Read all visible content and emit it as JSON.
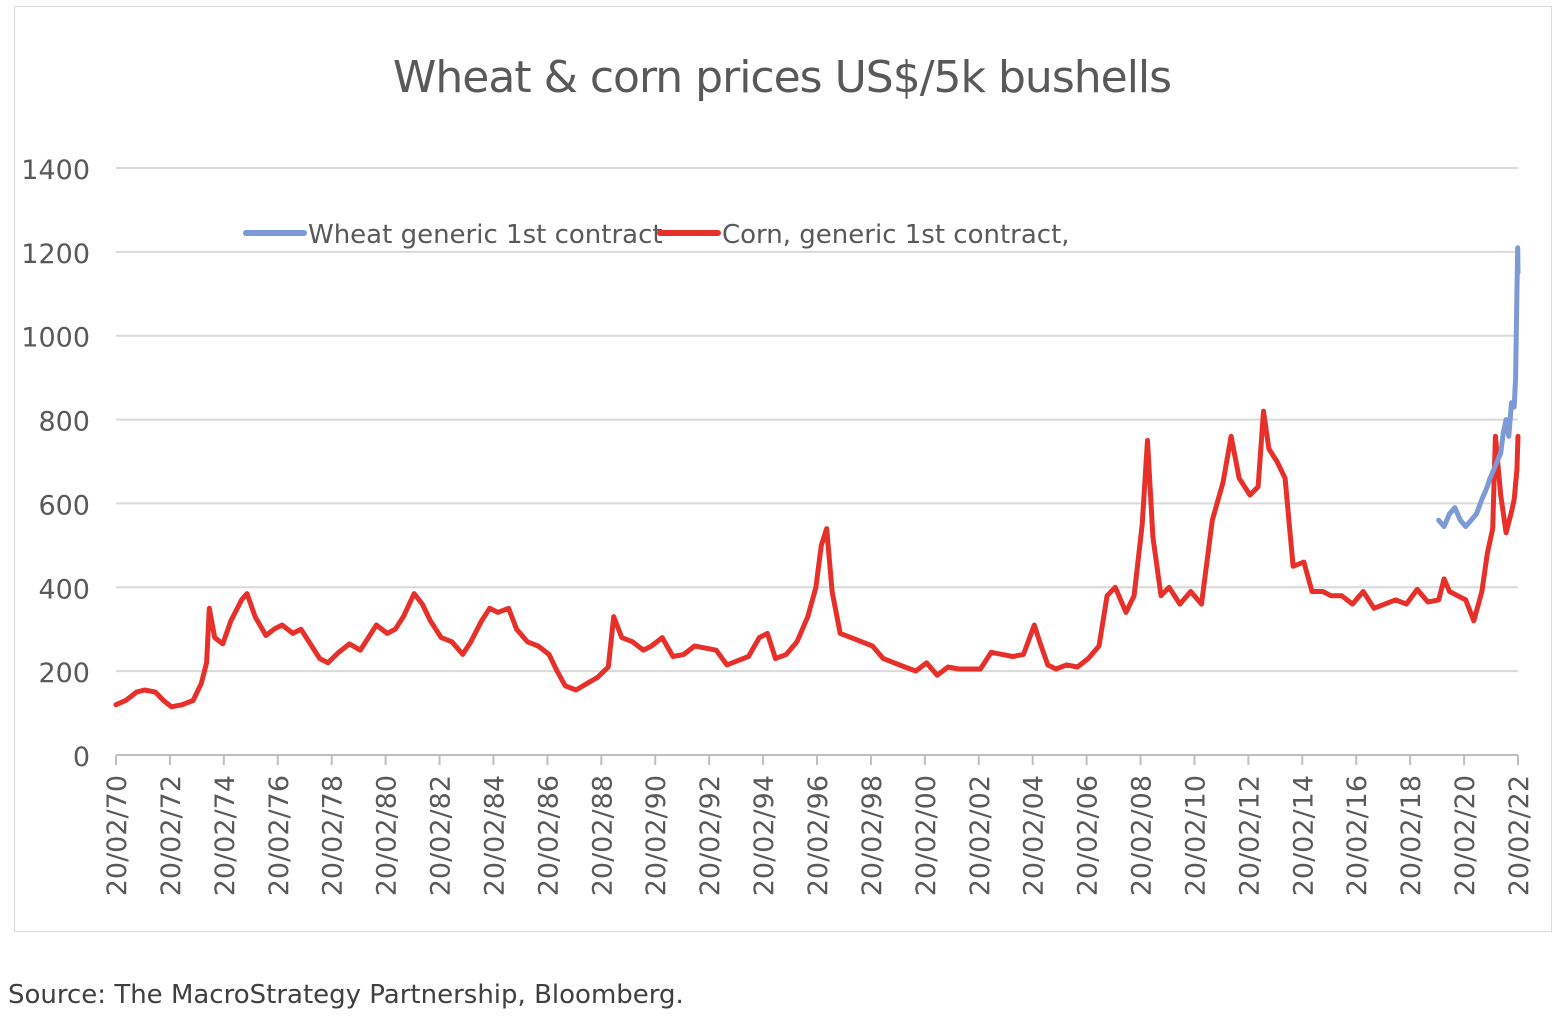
{
  "chart_data": {
    "type": "line",
    "title": "Wheat & corn prices US$/5k bushells",
    "xlabel": "",
    "ylabel": "",
    "ylim": [
      0,
      1400
    ],
    "yticks": [
      0,
      200,
      400,
      600,
      800,
      1000,
      1200,
      1400
    ],
    "xticks": [
      "20/02/70",
      "20/02/72",
      "20/02/74",
      "20/02/76",
      "20/02/78",
      "20/02/80",
      "20/02/82",
      "20/02/84",
      "20/02/86",
      "20/02/88",
      "20/02/90",
      "20/02/92",
      "20/02/94",
      "20/02/96",
      "20/02/98",
      "20/02/00",
      "20/02/02",
      "20/02/04",
      "20/02/06",
      "20/02/08",
      "20/02/10",
      "20/02/12",
      "20/02/14",
      "20/02/16",
      "20/02/18",
      "20/02/20",
      "20/02/22"
    ],
    "xlim": [
      1970.14,
      2022.14
    ],
    "grid": true,
    "legend_position": "top",
    "series": [
      {
        "name": "Wheat generic 1st contract",
        "color": "#7b9ad6",
        "points": [
          [
            2019.2,
            560
          ],
          [
            2019.4,
            545
          ],
          [
            2019.6,
            575
          ],
          [
            2019.8,
            590
          ],
          [
            2020.0,
            560
          ],
          [
            2020.2,
            545
          ],
          [
            2020.4,
            560
          ],
          [
            2020.6,
            575
          ],
          [
            2020.8,
            610
          ],
          [
            2021.0,
            640
          ],
          [
            2021.1,
            660
          ],
          [
            2021.3,
            690
          ],
          [
            2021.5,
            720
          ],
          [
            2021.6,
            770
          ],
          [
            2021.7,
            800
          ],
          [
            2021.8,
            760
          ],
          [
            2021.9,
            840
          ],
          [
            2022.0,
            830
          ],
          [
            2022.05,
            900
          ],
          [
            2022.1,
            1100
          ],
          [
            2022.13,
            1210
          ],
          [
            2022.14,
            1150
          ]
        ]
      },
      {
        "name": "Corn, generic 1st contract,",
        "color": "#e8302a",
        "points": [
          [
            1970.14,
            120
          ],
          [
            1970.5,
            130
          ],
          [
            1970.9,
            150
          ],
          [
            1971.2,
            155
          ],
          [
            1971.6,
            150
          ],
          [
            1971.9,
            130
          ],
          [
            1972.2,
            115
          ],
          [
            1972.6,
            120
          ],
          [
            1973.0,
            130
          ],
          [
            1973.3,
            170
          ],
          [
            1973.5,
            220
          ],
          [
            1973.6,
            350
          ],
          [
            1973.8,
            280
          ],
          [
            1974.1,
            265
          ],
          [
            1974.4,
            320
          ],
          [
            1974.8,
            370
          ],
          [
            1975.0,
            385
          ],
          [
            1975.3,
            330
          ],
          [
            1975.7,
            285
          ],
          [
            1976.0,
            300
          ],
          [
            1976.3,
            310
          ],
          [
            1976.7,
            290
          ],
          [
            1977.0,
            300
          ],
          [
            1977.3,
            270
          ],
          [
            1977.7,
            230
          ],
          [
            1978.0,
            220
          ],
          [
            1978.4,
            245
          ],
          [
            1978.8,
            265
          ],
          [
            1979.2,
            250
          ],
          [
            1979.5,
            280
          ],
          [
            1979.8,
            310
          ],
          [
            1980.2,
            290
          ],
          [
            1980.5,
            300
          ],
          [
            1980.8,
            330
          ],
          [
            1981.2,
            385
          ],
          [
            1981.5,
            360
          ],
          [
            1981.8,
            320
          ],
          [
            1982.2,
            280
          ],
          [
            1982.6,
            270
          ],
          [
            1983.0,
            240
          ],
          [
            1983.3,
            270
          ],
          [
            1983.7,
            320
          ],
          [
            1984.0,
            350
          ],
          [
            1984.3,
            340
          ],
          [
            1984.7,
            350
          ],
          [
            1985.0,
            300
          ],
          [
            1985.4,
            270
          ],
          [
            1985.8,
            260
          ],
          [
            1986.2,
            240
          ],
          [
            1986.5,
            200
          ],
          [
            1986.8,
            165
          ],
          [
            1987.2,
            155
          ],
          [
            1987.6,
            170
          ],
          [
            1988.0,
            185
          ],
          [
            1988.4,
            210
          ],
          [
            1988.6,
            330
          ],
          [
            1988.9,
            280
          ],
          [
            1989.3,
            270
          ],
          [
            1989.7,
            250
          ],
          [
            1990.0,
            260
          ],
          [
            1990.4,
            280
          ],
          [
            1990.8,
            235
          ],
          [
            1991.2,
            240
          ],
          [
            1991.6,
            260
          ],
          [
            1992.0,
            255
          ],
          [
            1992.4,
            250
          ],
          [
            1992.8,
            215
          ],
          [
            1993.2,
            225
          ],
          [
            1993.6,
            235
          ],
          [
            1994.0,
            280
          ],
          [
            1994.3,
            290
          ],
          [
            1994.6,
            230
          ],
          [
            1995.0,
            240
          ],
          [
            1995.4,
            270
          ],
          [
            1995.8,
            330
          ],
          [
            1996.1,
            400
          ],
          [
            1996.3,
            500
          ],
          [
            1996.5,
            540
          ],
          [
            1996.7,
            390
          ],
          [
            1997.0,
            290
          ],
          [
            1997.4,
            280
          ],
          [
            1997.8,
            270
          ],
          [
            1998.2,
            260
          ],
          [
            1998.6,
            230
          ],
          [
            1999.0,
            220
          ],
          [
            1999.4,
            210
          ],
          [
            1999.8,
            200
          ],
          [
            2000.2,
            220
          ],
          [
            2000.6,
            190
          ],
          [
            2001.0,
            210
          ],
          [
            2001.4,
            205
          ],
          [
            2001.8,
            205
          ],
          [
            2002.2,
            205
          ],
          [
            2002.6,
            245
          ],
          [
            2003.0,
            240
          ],
          [
            2003.4,
            235
          ],
          [
            2003.8,
            240
          ],
          [
            2004.2,
            310
          ],
          [
            2004.4,
            270
          ],
          [
            2004.7,
            215
          ],
          [
            2005.0,
            205
          ],
          [
            2005.4,
            215
          ],
          [
            2005.8,
            210
          ],
          [
            2006.2,
            230
          ],
          [
            2006.6,
            260
          ],
          [
            2006.9,
            380
          ],
          [
            2007.2,
            400
          ],
          [
            2007.6,
            340
          ],
          [
            2007.9,
            380
          ],
          [
            2008.2,
            550
          ],
          [
            2008.4,
            750
          ],
          [
            2008.6,
            520
          ],
          [
            2008.9,
            380
          ],
          [
            2009.2,
            400
          ],
          [
            2009.6,
            360
          ],
          [
            2010.0,
            390
          ],
          [
            2010.4,
            360
          ],
          [
            2010.8,
            560
          ],
          [
            2011.2,
            650
          ],
          [
            2011.5,
            760
          ],
          [
            2011.8,
            660
          ],
          [
            2012.2,
            620
          ],
          [
            2012.5,
            640
          ],
          [
            2012.7,
            820
          ],
          [
            2012.9,
            730
          ],
          [
            2013.2,
            700
          ],
          [
            2013.5,
            660
          ],
          [
            2013.8,
            450
          ],
          [
            2014.2,
            460
          ],
          [
            2014.5,
            390
          ],
          [
            2014.9,
            390
          ],
          [
            2015.2,
            380
          ],
          [
            2015.6,
            380
          ],
          [
            2016.0,
            360
          ],
          [
            2016.4,
            390
          ],
          [
            2016.8,
            350
          ],
          [
            2017.2,
            360
          ],
          [
            2017.6,
            370
          ],
          [
            2018.0,
            360
          ],
          [
            2018.4,
            395
          ],
          [
            2018.8,
            365
          ],
          [
            2019.2,
            370
          ],
          [
            2019.4,
            420
          ],
          [
            2019.6,
            390
          ],
          [
            2019.9,
            380
          ],
          [
            2020.2,
            370
          ],
          [
            2020.5,
            320
          ],
          [
            2020.8,
            390
          ],
          [
            2021.0,
            480
          ],
          [
            2021.2,
            540
          ],
          [
            2021.3,
            760
          ],
          [
            2021.5,
            620
          ],
          [
            2021.7,
            530
          ],
          [
            2021.9,
            580
          ],
          [
            2022.0,
            610
          ],
          [
            2022.1,
            680
          ],
          [
            2022.14,
            760
          ]
        ]
      }
    ]
  },
  "footer": {
    "source": "Source: The MacroStrategy Partnership, Bloomberg."
  }
}
